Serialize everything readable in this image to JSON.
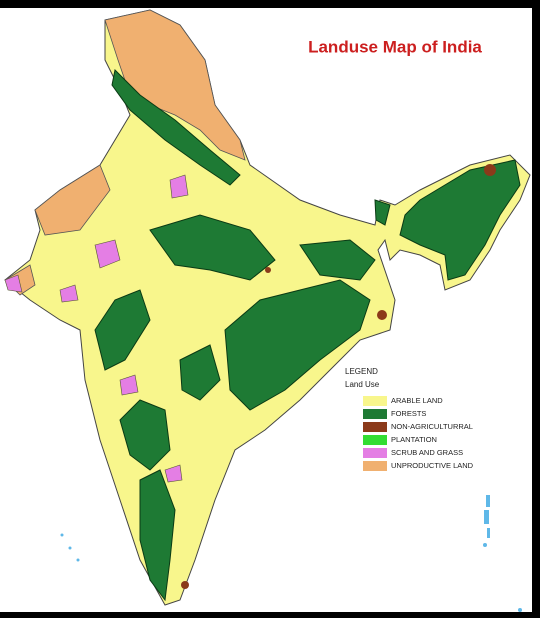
{
  "title": "Landuse Map of India",
  "legend": {
    "heading": "LEGEND",
    "subheading": "Land Use",
    "items": [
      {
        "label": "ARABLE LAND",
        "color": "#f8f68c"
      },
      {
        "label": "FORESTS",
        "color": "#1e7a34"
      },
      {
        "label": "NON-AGRICULTURRAL",
        "color": "#8b3a1a"
      },
      {
        "label": "PLANTATION",
        "color": "#33dd33"
      },
      {
        "label": "SCRUB AND GRASS",
        "color": "#e47ee4"
      },
      {
        "label": "UNPRODUCTIVE LAND",
        "color": "#f0b070"
      }
    ]
  }
}
